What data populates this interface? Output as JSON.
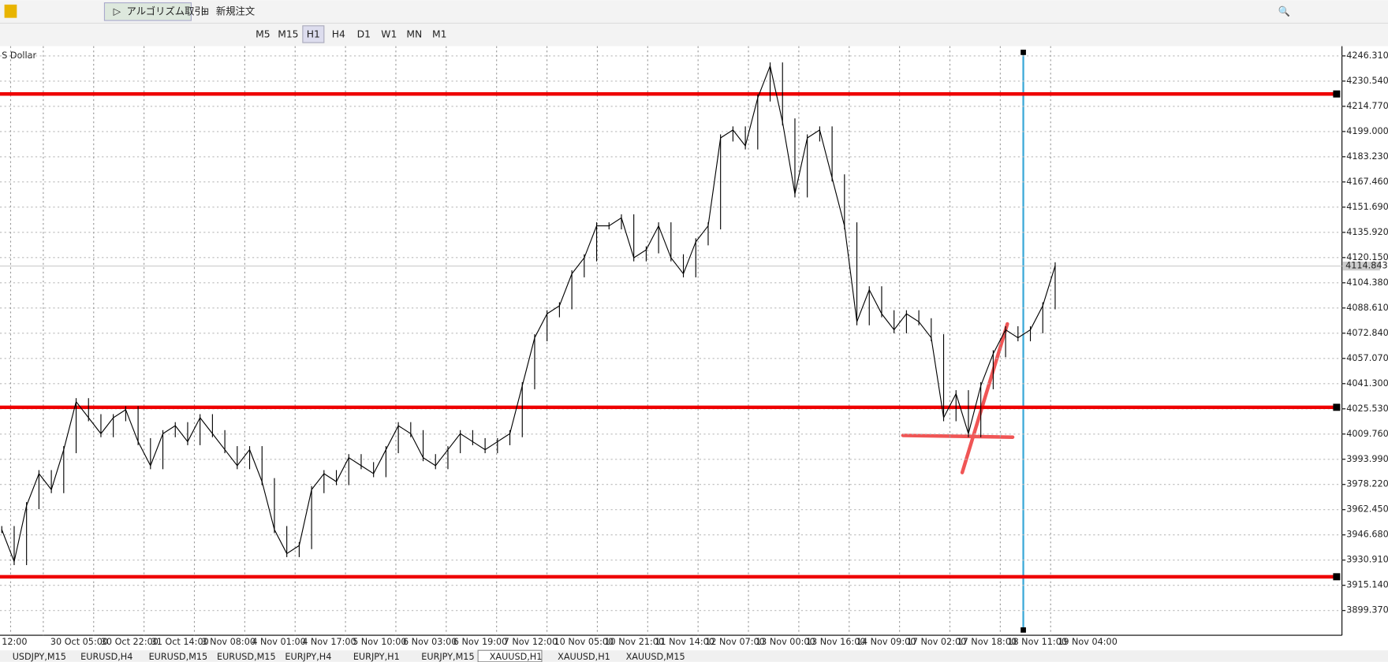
{
  "toolbar": {
    "algo_trading": "アルゴリズム取引",
    "new_order": "新規注文",
    "timeframes": [
      "M5",
      "M15",
      "H1",
      "H4",
      "D1",
      "W1",
      "MN",
      "M1"
    ]
  },
  "chart": {
    "symbol_label": "S Dollar",
    "price_ticks": [
      {
        "value": 4246.31,
        "label": "4246.310"
      },
      {
        "value": 4230.54,
        "label": "4230.540"
      },
      {
        "value": 4214.77,
        "label": "4214.770"
      },
      {
        "value": 4199,
        "label": "4199.000"
      },
      {
        "value": 4183.23,
        "label": "4183.230"
      },
      {
        "value": 4167.46,
        "label": "4167.460"
      },
      {
        "value": 4151.69,
        "label": "4151.690"
      },
      {
        "value": 4135.92,
        "label": "4135.920"
      },
      {
        "value": 4120.15,
        "label": "4120.150"
      },
      {
        "value": 4104.38,
        "label": "4104.380"
      },
      {
        "value": 4088.61,
        "label": "4088.610"
      },
      {
        "value": 4072.84,
        "label": "4072.840"
      },
      {
        "value": 4057.07,
        "label": "4057.070"
      },
      {
        "value": 4041.3,
        "label": "4041.300"
      },
      {
        "value": 4025.53,
        "label": "4025.530"
      },
      {
        "value": 4009.76,
        "label": "4009.760"
      },
      {
        "value": 3993.99,
        "label": "3993.990"
      },
      {
        "value": 3978.22,
        "label": "3978.220"
      },
      {
        "value": 3962.45,
        "label": "3962.450"
      },
      {
        "value": 3946.68,
        "label": "3946.680"
      },
      {
        "value": 3930.91,
        "label": "3930.910"
      },
      {
        "value": 3915.14,
        "label": "3915.140"
      },
      {
        "value": 3899.37,
        "label": "3899.370"
      }
    ],
    "current_price": 4114.843,
    "time_labels": [
      "12:00",
      "30 Oct 05:00",
      "30 Oct 22:00",
      "31 Oct 14:00",
      "3 Nov 08:00",
      "4 Nov 01:00",
      "4 Nov 17:00",
      "5 Nov 10:00",
      "6 Nov 03:00",
      "6 Nov 19:00",
      "7 Nov 12:00",
      "10 Nov 05:00",
      "10 Nov 21:00",
      "11 Nov 14:00",
      "12 Nov 07:00",
      "13 Nov 00:00",
      "13 Nov 16:00",
      "14 Nov 09:00",
      "17 Nov 02:00",
      "17 Nov 18:00",
      "18 Nov 11:00",
      "19 Nov 04:00"
    ],
    "horizontal_lines": [
      4222.5,
      4026.5,
      3920.5
    ],
    "price": [
      3950,
      3930,
      3965,
      3985,
      3975,
      4000,
      4030,
      4020,
      4010,
      4020,
      4025,
      4005,
      3990,
      4010,
      4015,
      4005,
      4020,
      4010,
      4000,
      3990,
      4000,
      3980,
      3950,
      3935,
      3940,
      3975,
      3985,
      3980,
      3995,
      3990,
      3985,
      4000,
      4015,
      4010,
      3995,
      3990,
      4000,
      4010,
      4005,
      4000,
      4005,
      4010,
      4040,
      4070,
      4085,
      4090,
      4110,
      4120,
      4140,
      4140,
      4145,
      4120,
      4125,
      4140,
      4120,
      4110,
      4130,
      4140,
      4195,
      4200,
      4190,
      4220,
      4240,
      4205,
      4160,
      4195,
      4200,
      4170,
      4140,
      4080,
      4100,
      4085,
      4075,
      4085,
      4080,
      4070,
      4020,
      4035,
      4010,
      4040,
      4060,
      4075,
      4070,
      4075,
      4090,
      4115
    ]
  },
  "tabs": [
    "USDJPY,M15",
    "EURUSD,H4",
    "EURUSD,M15",
    "EURUSD,M15",
    "EURJPY,H4",
    "EURJPY,H1",
    "EURJPY,M15",
    "XAUUSD,H1",
    "XAUUSD,H1",
    "XAUUSD,M15"
  ]
}
